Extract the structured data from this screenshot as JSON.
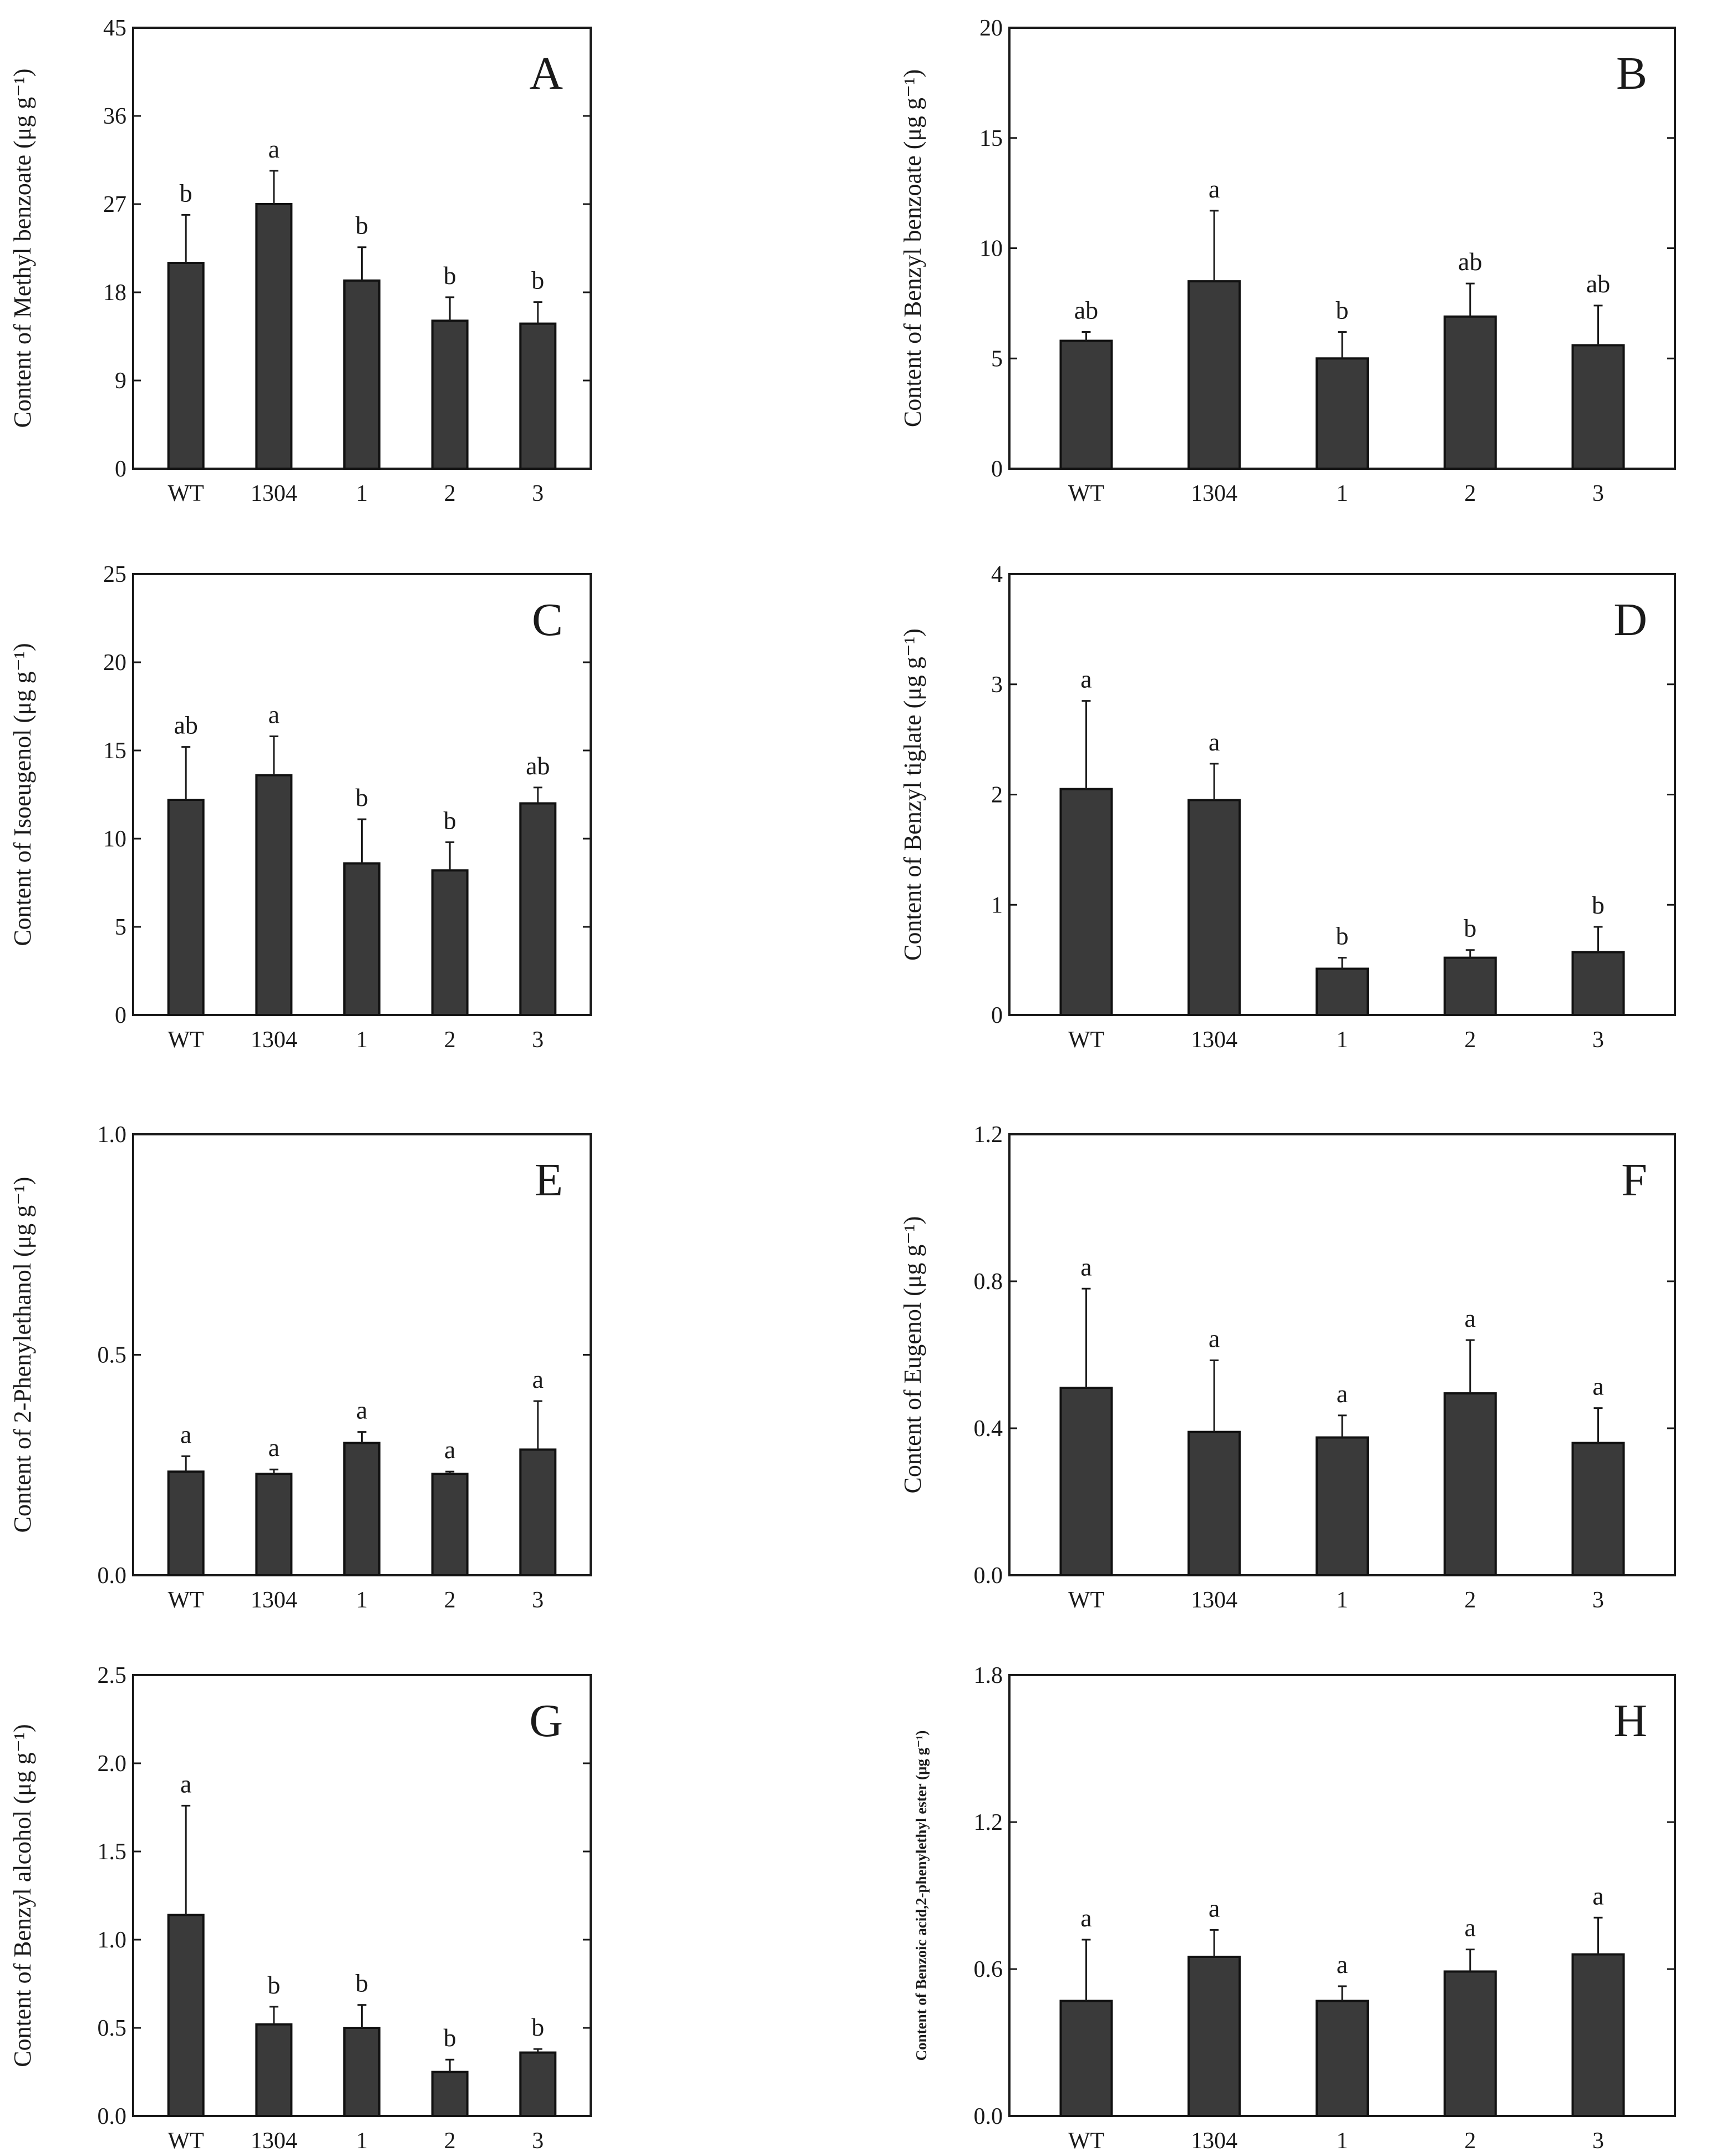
{
  "chart_data": [
    {
      "type": "bar",
      "panel": "A",
      "categories": [
        "WT",
        "1304",
        "1",
        "2",
        "3"
      ],
      "values": [
        21.0,
        27.0,
        19.2,
        15.1,
        14.8
      ],
      "errors": [
        4.9,
        3.4,
        3.4,
        2.4,
        2.2
      ],
      "significance": [
        "b",
        "a",
        "b",
        "b",
        "b"
      ],
      "ylabel": "Content of Methyl benzoate (μg g⁻¹)",
      "ylim": [
        0,
        45
      ],
      "yticks": [
        "0",
        "9",
        "18",
        "27",
        "36",
        "45"
      ]
    },
    {
      "type": "bar",
      "panel": "B",
      "categories": [
        "WT",
        "1304",
        "1",
        "2",
        "3"
      ],
      "values": [
        5.8,
        8.5,
        5.0,
        6.9,
        5.6
      ],
      "errors": [
        0.4,
        3.2,
        1.2,
        1.5,
        1.8
      ],
      "significance": [
        "ab",
        "a",
        "b",
        "ab",
        "ab"
      ],
      "ylabel": "Content of Benzyl benzoate (μg g⁻¹)",
      "ylim": [
        0,
        20
      ],
      "yticks": [
        "0",
        "5",
        "10",
        "15",
        "20"
      ]
    },
    {
      "type": "bar",
      "panel": "C",
      "categories": [
        "WT",
        "1304",
        "1",
        "2",
        "3"
      ],
      "values": [
        12.2,
        13.6,
        8.6,
        8.2,
        12.0
      ],
      "errors": [
        3.0,
        2.2,
        2.5,
        1.6,
        0.9
      ],
      "significance": [
        "ab",
        "a",
        "b",
        "b",
        "ab"
      ],
      "ylabel": "Content of Isoeugenol (μg g⁻¹)",
      "ylim": [
        0,
        25
      ],
      "yticks": [
        "0",
        "5",
        "10",
        "15",
        "20",
        "25"
      ]
    },
    {
      "type": "bar",
      "panel": "D",
      "categories": [
        "WT",
        "1304",
        "1",
        "2",
        "3"
      ],
      "values": [
        2.05,
        1.95,
        0.42,
        0.52,
        0.57
      ],
      "errors": [
        0.8,
        0.33,
        0.1,
        0.07,
        0.23
      ],
      "significance": [
        "a",
        "a",
        "b",
        "b",
        "b"
      ],
      "ylabel": "Content of Benzyl tiglate (μg g⁻¹)",
      "ylim": [
        0,
        4
      ],
      "yticks": [
        "0",
        "1",
        "2",
        "3",
        "4"
      ]
    },
    {
      "type": "bar",
      "panel": "E",
      "categories": [
        "WT",
        "1304",
        "1",
        "2",
        "3"
      ],
      "values": [
        0.235,
        0.23,
        0.3,
        0.23,
        0.285
      ],
      "errors": [
        0.035,
        0.01,
        0.025,
        0.005,
        0.11
      ],
      "significance": [
        "a",
        "a",
        "a",
        "a",
        "a"
      ],
      "ylabel": "Content of 2-Phenylethanol (μg g⁻¹)",
      "ylim": [
        0,
        1.0
      ],
      "yticks": [
        "0.0",
        "0.5",
        "1.0"
      ]
    },
    {
      "type": "bar",
      "panel": "F",
      "categories": [
        "WT",
        "1304",
        "1",
        "2",
        "3"
      ],
      "values": [
        0.51,
        0.39,
        0.375,
        0.495,
        0.36
      ],
      "errors": [
        0.27,
        0.195,
        0.06,
        0.145,
        0.095
      ],
      "significance": [
        "a",
        "a",
        "a",
        "a",
        "a"
      ],
      "ylabel": "Content of Eugenol (μg g⁻¹)",
      "ylim": [
        0,
        1.2
      ],
      "yticks": [
        "0.0",
        "0.4",
        "0.8",
        "1.2"
      ]
    },
    {
      "type": "bar",
      "panel": "G",
      "categories": [
        "WT",
        "1304",
        "1",
        "2",
        "3"
      ],
      "values": [
        1.14,
        0.52,
        0.5,
        0.25,
        0.36
      ],
      "errors": [
        0.62,
        0.1,
        0.13,
        0.07,
        0.02
      ],
      "significance": [
        "a",
        "b",
        "b",
        "b",
        "b"
      ],
      "ylabel": "Content of Benzyl alcohol (μg g⁻¹)",
      "ylim": [
        0,
        2.5
      ],
      "yticks": [
        "0.0",
        "0.5",
        "1.0",
        "1.5",
        "2.0",
        "2.5"
      ]
    },
    {
      "type": "bar",
      "panel": "H",
      "categories": [
        "WT",
        "1304",
        "1",
        "2",
        "3"
      ],
      "values": [
        0.47,
        0.65,
        0.47,
        0.59,
        0.66
      ],
      "errors": [
        0.25,
        0.11,
        0.06,
        0.09,
        0.15
      ],
      "significance": [
        "a",
        "a",
        "a",
        "a",
        "a"
      ],
      "ylabel": "Content of Benzoic acid,2-phenylethyl ester (μg g⁻¹)",
      "ylim": [
        0,
        1.8
      ],
      "yticks": [
        "0.0",
        "0.6",
        "1.2",
        "1.8"
      ]
    }
  ]
}
